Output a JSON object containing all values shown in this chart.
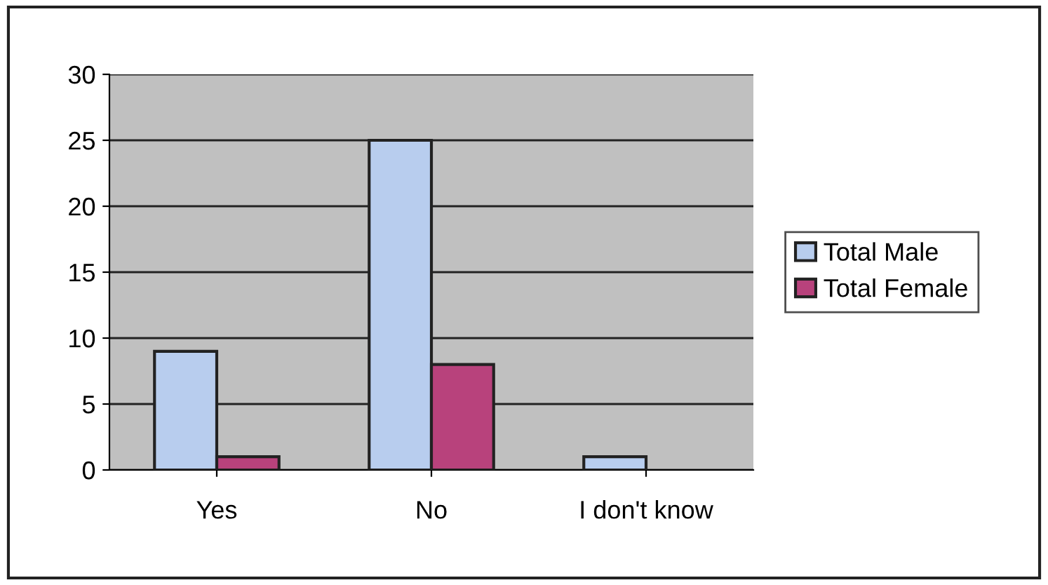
{
  "chart_data": {
    "type": "bar",
    "categories": [
      "Yes",
      "No",
      "I don't know"
    ],
    "series": [
      {
        "name": "Total Male",
        "color": "#b8cdee",
        "values": [
          9,
          25,
          1
        ]
      },
      {
        "name": "Total Female",
        "color": "#b8427c",
        "values": [
          1,
          8,
          null
        ]
      }
    ],
    "ylim": [
      0,
      30
    ],
    "yticks": [
      0,
      5,
      10,
      15,
      20,
      25,
      30
    ],
    "grid": "y",
    "legend": "right"
  }
}
